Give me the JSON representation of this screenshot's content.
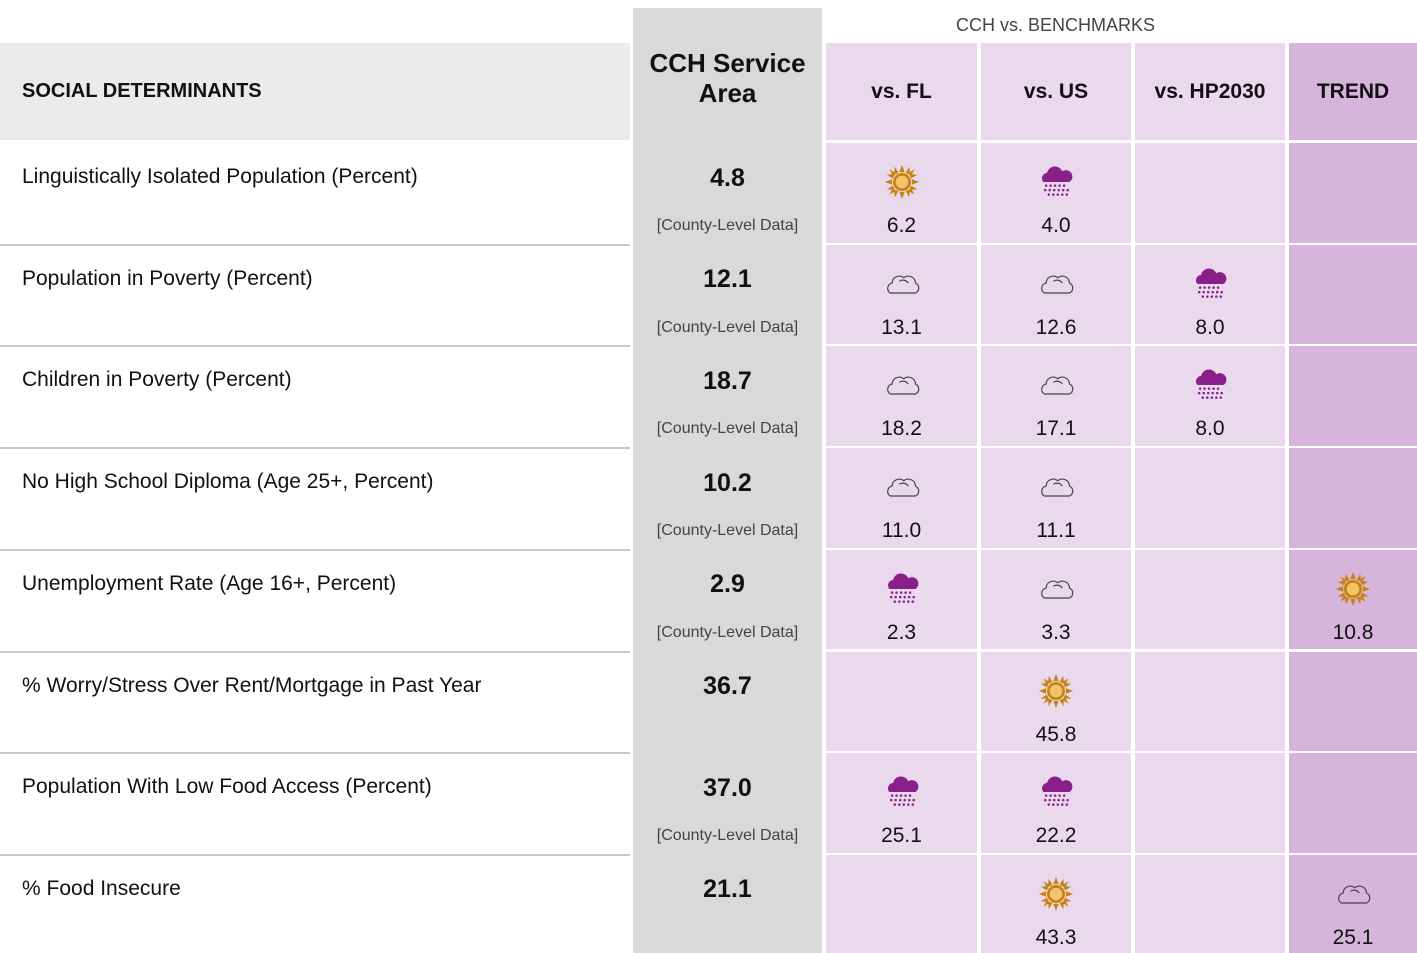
{
  "header": {
    "group": "CCH vs. BENCHMARKS",
    "columns": [
      "SOCIAL DETERMINANTS",
      "CCH Service Area",
      "vs. FL",
      "vs. US",
      "vs. HP2030",
      "TREND"
    ]
  },
  "table": {
    "rows": [
      {
        "label": "Linguistically Isolated Population (Percent)",
        "value": "4.8",
        "note": "[County-Level Data]",
        "fl": "6.2",
        "us": "4.0",
        "hp": null,
        "trend": null
      },
      {
        "label": "Population in Poverty (Percent)",
        "value": "12.1",
        "note": "[County-Level Data]",
        "fl": "13.1",
        "us": "12.6",
        "hp": "8.0",
        "trend": null
      },
      {
        "label": "Children in Poverty (Percent)",
        "value": "18.7",
        "note": "[County-Level Data]",
        "fl": "18.2",
        "us": "17.1",
        "hp": "8.0",
        "trend": null
      },
      {
        "label": "No High School Diploma (Age 25+, Percent)",
        "value": "10.2",
        "note": "[County-Level Data]",
        "fl": "11.0",
        "us": "11.1",
        "hp": null,
        "trend": null
      },
      {
        "label": "Unemployment Rate (Age 16+, Percent)",
        "value": "2.9",
        "note": "[County-Level Data]",
        "fl": "2.3",
        "us": "3.3",
        "hp": null,
        "trend": "10.8"
      },
      {
        "label": "% Worry/Stress Over Rent/Mortgage in Past Year",
        "value": "36.7",
        "note": null,
        "fl": null,
        "us": "45.8",
        "hp": null,
        "trend": null
      },
      {
        "label": "Population With Low Food Access (Percent)",
        "value": "37.0",
        "note": "[County-Level Data]",
        "fl": "25.1",
        "us": "22.2",
        "hp": null,
        "trend": null
      },
      {
        "label": "% Food Insecure",
        "value": "21.1",
        "note": null,
        "fl": null,
        "us": "43.3",
        "hp": null,
        "trend": "25.1"
      }
    ]
  }
}
